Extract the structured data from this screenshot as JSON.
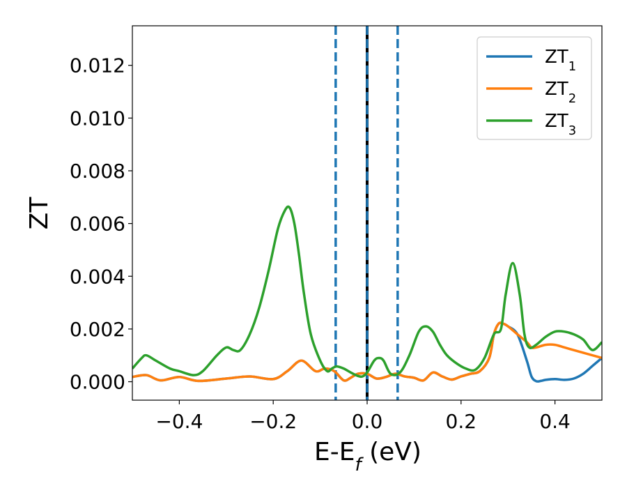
{
  "chart_data": {
    "type": "line",
    "xlabel": {
      "main": "E-E",
      "sub": "f",
      "unit": " (eV)"
    },
    "ylabel": "ZT",
    "xlim": [
      -0.5,
      0.5
    ],
    "ylim": [
      -0.0007,
      0.0135
    ],
    "xticks": [
      -0.4,
      -0.2,
      0.0,
      0.2,
      0.4
    ],
    "xtick_labels": [
      "−0.4",
      "−0.2",
      "0.0",
      "0.2",
      "0.4"
    ],
    "yticks": [
      0.0,
      0.002,
      0.004,
      0.006,
      0.008,
      0.01,
      0.012
    ],
    "ytick_labels": [
      "0.000",
      "0.002",
      "0.004",
      "0.006",
      "0.008",
      "0.010",
      "0.012"
    ],
    "grid": false,
    "legend_position": "top-right",
    "vlines": [
      {
        "x": -0.067,
        "style": "dashed",
        "color": "#1f77b4"
      },
      {
        "x": 0.0,
        "style": "solid",
        "color": "#000000"
      },
      {
        "x": 0.0,
        "style": "dashed",
        "color": "#1f77b4"
      },
      {
        "x": 0.065,
        "style": "dashed",
        "color": "#1f77b4"
      }
    ],
    "series": [
      {
        "name": "ZT",
        "name_sub": "1",
        "color": "#1f77b4",
        "x": [
          -0.5,
          -0.47,
          -0.44,
          -0.4,
          -0.36,
          -0.3,
          -0.25,
          -0.2,
          -0.17,
          -0.14,
          -0.11,
          -0.09,
          -0.07,
          -0.05,
          -0.035,
          -0.02,
          0.0,
          0.02,
          0.04,
          0.06,
          0.08,
          0.1,
          0.12,
          0.14,
          0.16,
          0.18,
          0.2,
          0.22,
          0.24,
          0.26,
          0.27,
          0.28,
          0.29,
          0.3,
          0.32,
          0.34,
          0.35,
          0.36,
          0.37,
          0.38,
          0.4,
          0.42,
          0.44,
          0.46,
          0.48,
          0.5
        ],
        "y": [
          0.00018,
          0.00025,
          5e-05,
          0.00018,
          3e-05,
          0.00012,
          0.0002,
          0.0001,
          0.0004,
          0.0008,
          0.0004,
          0.0005,
          0.0004,
          5e-05,
          0.00015,
          0.0003,
          0.0003,
          0.00012,
          0.00018,
          0.0003,
          0.0002,
          0.00015,
          5e-05,
          0.00035,
          0.0002,
          8e-05,
          0.0002,
          0.0003,
          0.0004,
          0.0009,
          0.0018,
          0.0022,
          0.0022,
          0.0021,
          0.0018,
          0.0008,
          0.0002,
          2e-05,
          3e-05,
          7e-05,
          0.0001,
          7e-05,
          0.00012,
          0.0003,
          0.0006,
          0.0009
        ]
      },
      {
        "name": "ZT",
        "name_sub": "2",
        "color": "#ff7f0e",
        "x": [
          -0.5,
          -0.47,
          -0.44,
          -0.4,
          -0.36,
          -0.3,
          -0.25,
          -0.2,
          -0.17,
          -0.14,
          -0.11,
          -0.09,
          -0.07,
          -0.05,
          -0.035,
          -0.02,
          0.0,
          0.02,
          0.04,
          0.06,
          0.08,
          0.1,
          0.12,
          0.14,
          0.16,
          0.18,
          0.2,
          0.22,
          0.24,
          0.26,
          0.27,
          0.28,
          0.29,
          0.3,
          0.32,
          0.34,
          0.35,
          0.36,
          0.38,
          0.4,
          0.42,
          0.44,
          0.46,
          0.48,
          0.5
        ],
        "y": [
          0.00018,
          0.00025,
          5e-05,
          0.00018,
          3e-05,
          0.00012,
          0.0002,
          0.0001,
          0.0004,
          0.0008,
          0.0004,
          0.0005,
          0.0004,
          5e-05,
          0.00015,
          0.0003,
          0.0003,
          0.00012,
          0.00018,
          0.0003,
          0.0002,
          0.00015,
          5e-05,
          0.00035,
          0.0002,
          8e-05,
          0.0002,
          0.0003,
          0.0004,
          0.0009,
          0.0018,
          0.0022,
          0.0022,
          0.0021,
          0.0018,
          0.0015,
          0.0013,
          0.0013,
          0.0014,
          0.0014,
          0.0013,
          0.0012,
          0.0011,
          0.001,
          0.0009
        ]
      },
      {
        "name": "ZT",
        "name_sub": "3",
        "color": "#2ca02c",
        "x": [
          -0.5,
          -0.48,
          -0.47,
          -0.45,
          -0.42,
          -0.4,
          -0.37,
          -0.35,
          -0.32,
          -0.3,
          -0.285,
          -0.27,
          -0.25,
          -0.23,
          -0.21,
          -0.19,
          -0.175,
          -0.165,
          -0.155,
          -0.145,
          -0.135,
          -0.12,
          -0.1,
          -0.085,
          -0.075,
          -0.065,
          -0.05,
          -0.035,
          -0.02,
          -0.01,
          0.0,
          0.015,
          0.025,
          0.035,
          0.05,
          0.07,
          0.09,
          0.11,
          0.125,
          0.14,
          0.155,
          0.17,
          0.19,
          0.21,
          0.23,
          0.25,
          0.27,
          0.285,
          0.295,
          0.31,
          0.325,
          0.335,
          0.345,
          0.36,
          0.38,
          0.4,
          0.42,
          0.44,
          0.46,
          0.48,
          0.5
        ],
        "y": [
          0.0005,
          0.0009,
          0.001,
          0.0008,
          0.0005,
          0.0004,
          0.00025,
          0.0004,
          0.001,
          0.0013,
          0.0012,
          0.0012,
          0.0018,
          0.0028,
          0.0042,
          0.0058,
          0.0065,
          0.0066,
          0.006,
          0.0048,
          0.0034,
          0.0018,
          0.0008,
          0.0004,
          0.0005,
          0.00058,
          0.0005,
          0.00035,
          0.00022,
          0.0002,
          0.00035,
          0.0008,
          0.0009,
          0.0008,
          0.0003,
          0.00035,
          0.001,
          0.0019,
          0.0021,
          0.0019,
          0.0014,
          0.001,
          0.0007,
          0.0005,
          0.00045,
          0.0009,
          0.0018,
          0.002,
          0.0033,
          0.0045,
          0.0033,
          0.0018,
          0.0013,
          0.0014,
          0.0017,
          0.0019,
          0.0019,
          0.0018,
          0.0016,
          0.0012,
          0.0015
        ]
      }
    ]
  }
}
